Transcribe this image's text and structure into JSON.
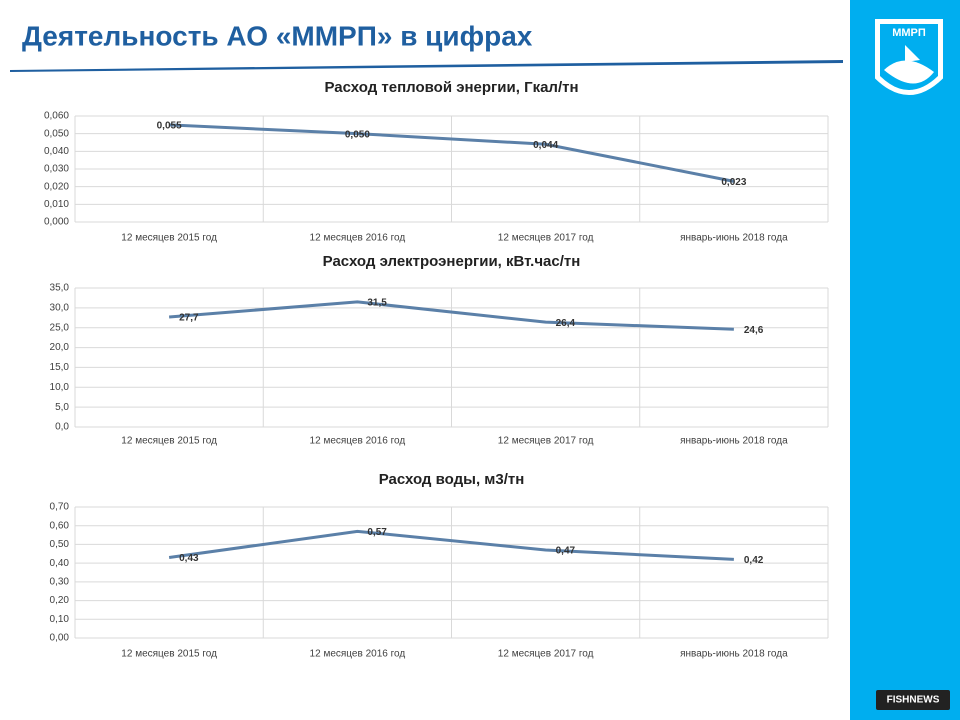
{
  "header": {
    "title": "Деятельность АО «ММРП» в цифрах"
  },
  "logo": {
    "text": "ММРП"
  },
  "badge": {
    "text": "FISHNEWS"
  },
  "chart_data": [
    {
      "type": "line",
      "title": "Расход тепловой энергии, Гкал/тн",
      "categories": [
        "12 месяцев 2015 год",
        "12 месяцев 2016 год",
        "12 месяцев 2017 год",
        "январь-июнь 2018 года"
      ],
      "values": [
        0.055,
        0.05,
        0.044,
        0.023
      ],
      "value_labels": [
        "0,055",
        "0,050",
        "0,044",
        "0,023"
      ],
      "color": "#5b80a8",
      "ylim": [
        0,
        0.06
      ],
      "yticks": [
        {
          "value": 0,
          "label": "0,000"
        },
        {
          "value": 0.01,
          "label": "0,010"
        },
        {
          "value": 0.02,
          "label": "0,020"
        },
        {
          "value": 0.03,
          "label": "0,030"
        },
        {
          "value": 0.04,
          "label": "0,040"
        },
        {
          "value": 0.05,
          "label": "0,050"
        },
        {
          "value": 0.06,
          "label": "0,060"
        }
      ],
      "grid": true
    },
    {
      "type": "line",
      "title": "Расход электроэнергии, кВт.час/тн",
      "categories": [
        "12 месяцев 2015 год",
        "12 месяцев 2016 год",
        "12 месяцев 2017 год",
        "январь-июнь 2018 года"
      ],
      "values": [
        27.7,
        31.5,
        26.4,
        24.6
      ],
      "value_labels": [
        "27,7",
        "31,5",
        "26,4",
        "24,6"
      ],
      "color": "#5b80a8",
      "ylim": [
        0,
        35
      ],
      "yticks": [
        {
          "value": 0,
          "label": "0,0"
        },
        {
          "value": 5,
          "label": "5,0"
        },
        {
          "value": 10,
          "label": "10,0"
        },
        {
          "value": 15,
          "label": "15,0"
        },
        {
          "value": 20,
          "label": "20,0"
        },
        {
          "value": 25,
          "label": "25,0"
        },
        {
          "value": 30,
          "label": "30,0"
        },
        {
          "value": 35,
          "label": "35,0"
        }
      ],
      "grid": true
    },
    {
      "type": "line",
      "title": "Расход воды, м3/тн",
      "categories": [
        "12 месяцев 2015 год",
        "12 месяцев 2016 год",
        "12 месяцев 2017 год",
        "январь-июнь 2018 года"
      ],
      "values": [
        0.43,
        0.57,
        0.47,
        0.42
      ],
      "value_labels": [
        "0,43",
        "0,57",
        "0,47",
        "0,42"
      ],
      "color": "#5b80a8",
      "ylim": [
        0,
        0.7
      ],
      "yticks": [
        {
          "value": 0,
          "label": "0,00"
        },
        {
          "value": 0.1,
          "label": "0,10"
        },
        {
          "value": 0.2,
          "label": "0,20"
        },
        {
          "value": 0.3,
          "label": "0,30"
        },
        {
          "value": 0.4,
          "label": "0,40"
        },
        {
          "value": 0.5,
          "label": "0,50"
        },
        {
          "value": 0.6,
          "label": "0,60"
        },
        {
          "value": 0.7,
          "label": "0,70"
        }
      ],
      "grid": true
    }
  ]
}
